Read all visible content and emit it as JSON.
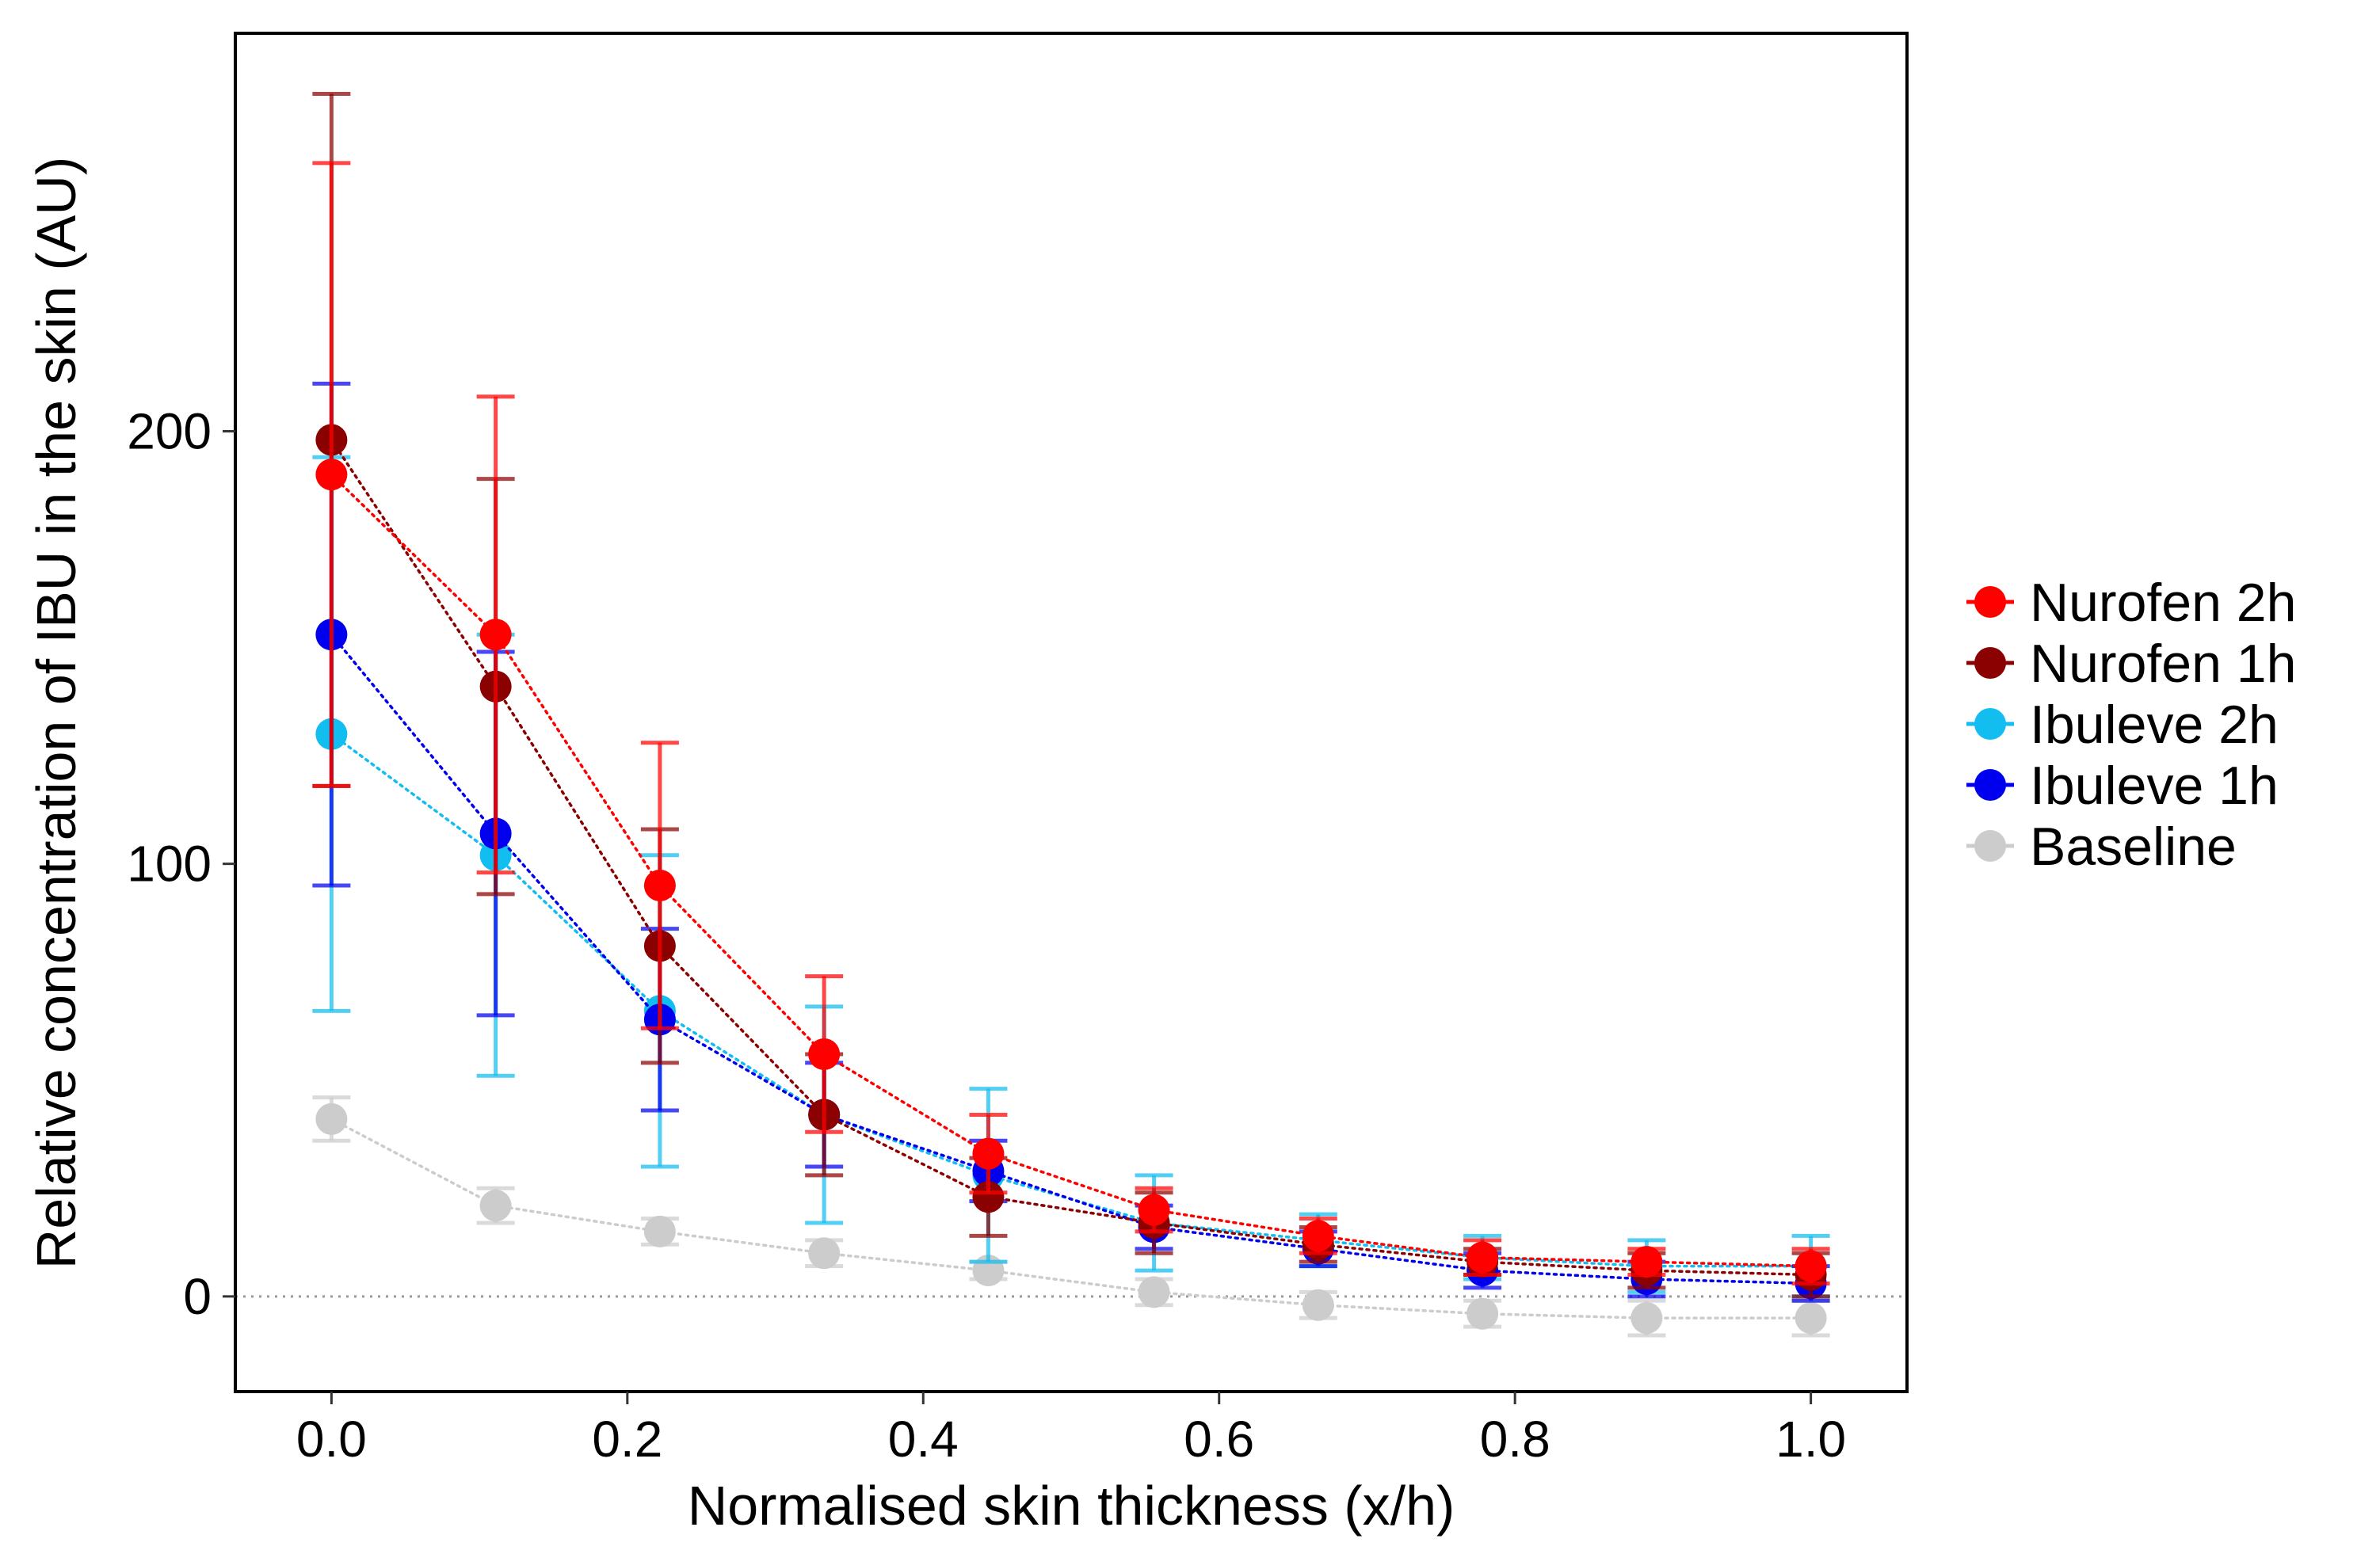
{
  "chart_data": {
    "type": "scatter",
    "title": "",
    "xlabel": "Normalised skin thickness (x/h)",
    "ylabel": "Relative concentration of IBU in the skin (AU)",
    "xlim": [
      -0.065,
      1.065
    ],
    "ylim": [
      -22,
      292
    ],
    "x_ticks": [
      0.0,
      0.2,
      0.4,
      0.6,
      0.8,
      1.0
    ],
    "x_tick_labels": [
      "0.0",
      "0.2",
      "0.4",
      "0.6",
      "0.8",
      "1.0"
    ],
    "y_ticks": [
      0,
      100,
      200
    ],
    "y_tick_labels": [
      "0",
      "100",
      "200"
    ],
    "reference_line_y": 0,
    "grid": false,
    "legend_position": "right",
    "x": [
      0,
      0.111,
      0.222,
      0.333,
      0.444,
      0.556,
      0.667,
      0.778,
      0.889,
      1.0
    ],
    "series": [
      {
        "name": "Baseline",
        "color": "#cccccc",
        "values": [
          41,
          21,
          15,
          10,
          6,
          1,
          -2,
          -4,
          -5,
          -5
        ],
        "err": [
          5,
          4,
          3,
          3,
          2,
          3,
          3,
          3,
          4,
          4
        ]
      },
      {
        "name": "Ibuleve 2h",
        "color": "#12bdf0",
        "values": [
          130,
          102,
          66,
          42,
          28,
          17,
          13,
          9,
          7,
          7
        ],
        "err": [
          64,
          51,
          36,
          25,
          20,
          11,
          6,
          5,
          6,
          7
        ]
      },
      {
        "name": "Ibuleve 1h",
        "color": "#0000ee",
        "values": [
          153,
          107,
          64,
          42,
          29,
          16,
          11,
          6,
          4,
          3
        ],
        "err": [
          58,
          42,
          21,
          12,
          7,
          5,
          4,
          4,
          4,
          4
        ]
      },
      {
        "name": "Nurofen 1h",
        "color": "#8b0000",
        "values": [
          198,
          141,
          81,
          42,
          23,
          17,
          12,
          8,
          6,
          5
        ],
        "err": [
          80,
          48,
          27,
          14,
          9,
          7,
          4,
          3,
          4,
          5
        ]
      },
      {
        "name": "Nurofen 2h",
        "color": "#ff0000",
        "values": [
          190,
          153,
          95,
          56,
          33,
          20,
          14,
          9,
          8,
          7
        ],
        "err": [
          72,
          55,
          33,
          18,
          9,
          5,
          4,
          4,
          3,
          4
        ]
      }
    ],
    "legend_order": [
      "Nurofen 2h",
      "Nurofen 1h",
      "Ibuleve 2h",
      "Ibuleve 1h",
      "Baseline"
    ]
  }
}
